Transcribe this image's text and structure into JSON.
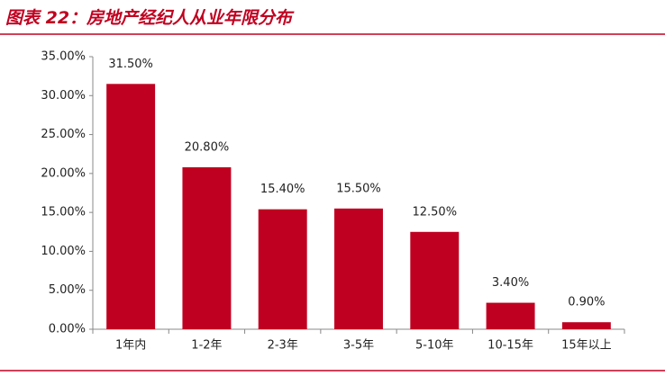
{
  "chart_data": {
    "type": "bar",
    "title": "图表 22：房地产经纪人从业年限分布",
    "categories": [
      "1年内",
      "1-2年",
      "2-3年",
      "3-5年",
      "5-10年",
      "10-15年",
      "15年以上"
    ],
    "values": [
      31.5,
      20.8,
      15.4,
      15.5,
      12.5,
      3.4,
      0.9
    ],
    "value_labels": [
      "31.50%",
      "20.80%",
      "15.40%",
      "15.50%",
      "12.50%",
      "3.40%",
      "0.90%"
    ],
    "color": "#c00020",
    "ylim": [
      0,
      35
    ],
    "yticks": [
      {
        "value": 0,
        "label": "0.00%"
      },
      {
        "value": 5,
        "label": "5.00%"
      },
      {
        "value": 10,
        "label": "10.00%"
      },
      {
        "value": 15,
        "label": "15.00%"
      },
      {
        "value": 20,
        "label": "20.00%"
      },
      {
        "value": 25,
        "label": "25.00%"
      },
      {
        "value": 30,
        "label": "30.00%"
      },
      {
        "value": 35,
        "label": "35.00%"
      }
    ],
    "grid": false
  }
}
